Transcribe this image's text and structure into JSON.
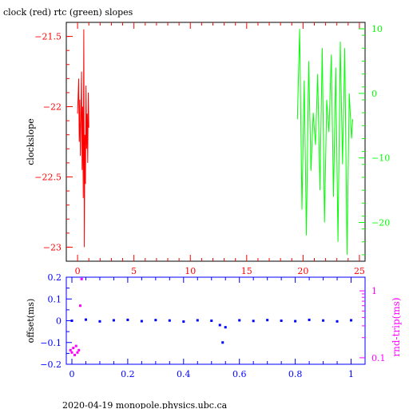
{
  "chart_data": [
    {
      "type": "line",
      "title": "clock (red) rtc (green) slopes",
      "ylabel": "clockslope",
      "xlim": [
        -1,
        25.5
      ],
      "ylim_left": [
        -23.1,
        -21.4
      ],
      "ylim_right": [
        -26,
        11
      ],
      "x_ticks": [
        "0",
        "5",
        "10",
        "15",
        "20",
        "25"
      ],
      "y_ticks_left": [
        "-21.5",
        "-22",
        "-22.5",
        "-23"
      ],
      "y_ticks_right": [
        "10",
        "0",
        "-10",
        "-20"
      ],
      "colors": {
        "clock": "#ff0000",
        "rtc": "#00ff00",
        "axes": "#000000"
      },
      "series": [
        {
          "axis": "left",
          "x": [
            0.0,
            0.1,
            0.15,
            0.2,
            0.25,
            0.3,
            0.35,
            0.4,
            0.45,
            0.5,
            0.55,
            0.6,
            0.65,
            0.7,
            0.75,
            0.8,
            0.85,
            0.9,
            0.95,
            1.0
          ],
          "y": [
            -22.05,
            -21.8,
            -22.25,
            -21.95,
            -22.35,
            -22.1,
            -21.75,
            -22.45,
            -22.0,
            -22.65,
            -21.45,
            -23.0,
            -22.2,
            -22.55,
            -21.85,
            -22.3,
            -22.05,
            -22.4,
            -21.9,
            -22.15
          ]
        },
        {
          "axis": "right",
          "x": [
            19.5,
            19.7,
            19.9,
            20.1,
            20.3,
            20.5,
            20.7,
            20.9,
            21.1,
            21.3,
            21.5,
            21.7,
            21.9,
            22.1,
            22.3,
            22.5,
            22.7,
            22.9,
            23.1,
            23.3,
            23.5,
            23.7,
            23.9,
            24.1,
            24.3,
            24.4
          ],
          "y": [
            -4,
            10,
            -18,
            2,
            -22,
            5,
            -12,
            -3,
            -8,
            3,
            -15,
            7,
            -20,
            -1,
            -6,
            6,
            -16,
            4,
            -23,
            8,
            -11,
            7,
            -25,
            0,
            -7,
            -4
          ]
        }
      ],
      "grid": false
    },
    {
      "type": "scatter",
      "ylabel": "offset(ms)",
      "ylabel_right": "rnd-trip(ms)",
      "xlim": [
        -0.02,
        1.05
      ],
      "ylim": [
        -0.2,
        0.2
      ],
      "ylim_right_log": [
        0.08,
        1.6
      ],
      "x_ticks": [
        "0",
        "0.2",
        "0.4",
        "0.6",
        "0.8",
        "1"
      ],
      "y_ticks_left": [
        "0.2",
        "0.1",
        "0",
        "-0.1",
        "-0.2"
      ],
      "y_ticks_right": [
        "1",
        "0.1"
      ],
      "colors": {
        "offset": "#0000ff",
        "rndtrip": "#ff00ff",
        "axes": "#0000ff"
      },
      "series": [
        {
          "axis": "left",
          "x": [
            0.0,
            0.05,
            0.1,
            0.15,
            0.2,
            0.25,
            0.3,
            0.35,
            0.4,
            0.45,
            0.5,
            0.53,
            0.54,
            0.55,
            0.6,
            0.65,
            0.7,
            0.75,
            0.8,
            0.85,
            0.9,
            0.95,
            1.0
          ],
          "y": [
            0.0,
            0.005,
            -0.003,
            0.002,
            0.004,
            -0.002,
            0.003,
            0.001,
            -0.004,
            0.002,
            0.0,
            -0.02,
            -0.1,
            -0.03,
            0.002,
            -0.001,
            0.003,
            0.0,
            -0.002,
            0.004,
            0.001,
            -0.003,
            0.002
          ]
        },
        {
          "axis": "right",
          "x": [
            -0.005,
            0.0,
            0.005,
            0.01,
            0.015,
            0.02,
            0.025,
            0.03,
            0.035
          ],
          "y": [
            0.13,
            0.12,
            0.14,
            0.11,
            0.15,
            0.12,
            0.13,
            0.6,
            1.5
          ]
        }
      ],
      "grid": false
    }
  ],
  "footer": {
    "text": "2020-04-19  monopole.physics.ubc.ca"
  }
}
